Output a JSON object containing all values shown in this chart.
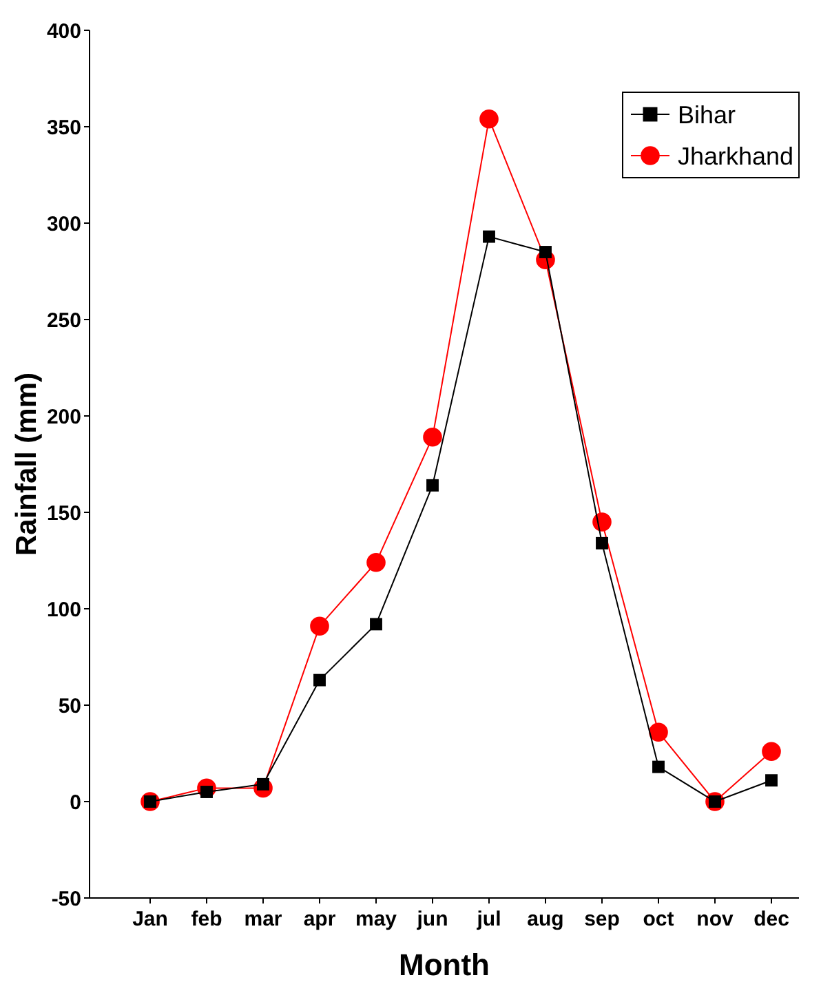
{
  "chart_data": {
    "type": "line",
    "xlabel": "Month",
    "ylabel": "Rainfall (mm)",
    "categories": [
      "Jan",
      "feb",
      "mar",
      "apr",
      "may",
      "jun",
      "jul",
      "aug",
      "sep",
      "oct",
      "nov",
      "dec"
    ],
    "series": [
      {
        "name": "Bihar",
        "color": "#000000",
        "marker": "square",
        "values": [
          0,
          5,
          9,
          63,
          92,
          164,
          293,
          285,
          134,
          18,
          0,
          11
        ]
      },
      {
        "name": "Jharkhand",
        "color": "#ff0000",
        "marker": "circle",
        "values": [
          0,
          7,
          7,
          91,
          124,
          189,
          354,
          281,
          145,
          36,
          0,
          26
        ]
      }
    ],
    "ylim": [
      -50,
      400
    ],
    "yticks": [
      -50,
      0,
      50,
      100,
      150,
      200,
      250,
      300,
      350,
      400
    ],
    "grid": false,
    "legend": "top right"
  }
}
